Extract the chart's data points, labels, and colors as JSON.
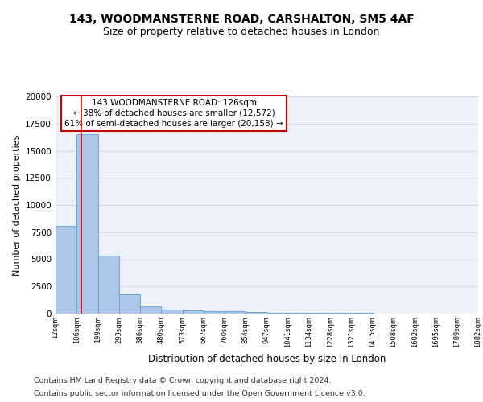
{
  "title": "143, WOODMANSTERNE ROAD, CARSHALTON, SM5 4AF",
  "subtitle": "Size of property relative to detached houses in London",
  "xlabel": "Distribution of detached houses by size in London",
  "ylabel": "Number of detached properties",
  "bar_values": [
    8100,
    16500,
    5300,
    1800,
    700,
    370,
    270,
    210,
    200,
    130,
    100,
    80,
    60,
    50,
    40,
    30,
    25,
    20,
    15,
    10
  ],
  "bar_color": "#aec6e8",
  "bar_edge_color": "#5a9fd4",
  "x_tick_labels": [
    "12sqm",
    "106sqm",
    "199sqm",
    "293sqm",
    "386sqm",
    "480sqm",
    "573sqm",
    "667sqm",
    "760sqm",
    "854sqm",
    "947sqm",
    "1041sqm",
    "1134sqm",
    "1228sqm",
    "1321sqm",
    "1415sqm",
    "1508sqm",
    "1602sqm",
    "1695sqm",
    "1789sqm",
    "1882sqm"
  ],
  "ylim": [
    0,
    20000
  ],
  "annotation_text": "143 WOODMANSTERNE ROAD: 126sqm\n← 38% of detached houses are smaller (12,572)\n61% of semi-detached houses are larger (20,158) →",
  "annotation_box_color": "#ffffff",
  "annotation_box_edge_color": "#cc0000",
  "footer_line1": "Contains HM Land Registry data © Crown copyright and database right 2024.",
  "footer_line2": "Contains public sector information licensed under the Open Government Licence v3.0.",
  "grid_color": "#d0d8e8",
  "background_color": "#eef2f8",
  "fig_background_color": "#ffffff",
  "title_fontsize": 10,
  "subtitle_fontsize": 9,
  "annotation_fontsize": 7.5,
  "footer_fontsize": 6.8,
  "ylabel_fontsize": 8,
  "xlabel_fontsize": 8.5
}
